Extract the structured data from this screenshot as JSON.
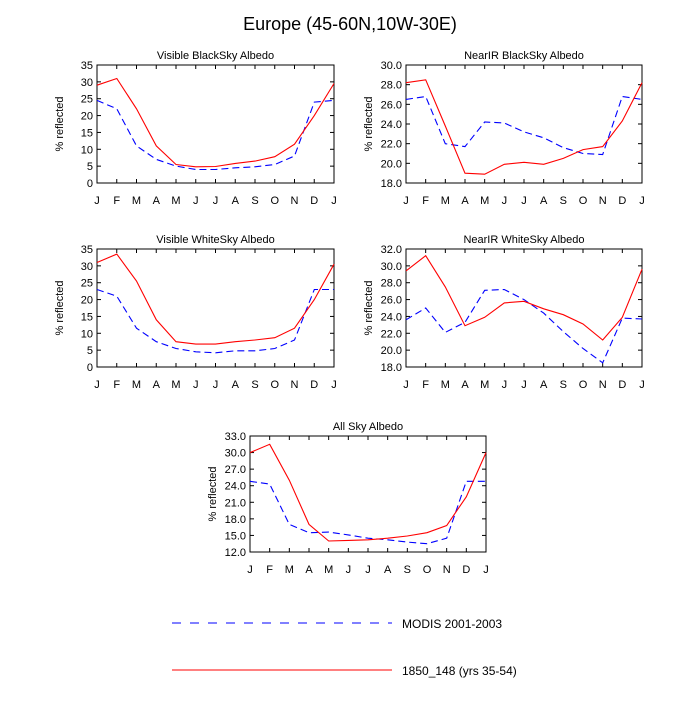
{
  "figure": {
    "title": "Europe (45-60N,10W-30E)",
    "ylabel": "% reflected",
    "months": [
      "J",
      "F",
      "M",
      "A",
      "M",
      "J",
      "J",
      "A",
      "S",
      "O",
      "N",
      "D",
      "J"
    ],
    "legend": [
      {
        "label": "MODIS 2001-2003",
        "color": "#0000ff",
        "dash": "dashed"
      },
      {
        "label": "1850_148 (yrs 35-54)",
        "color": "#ff0000",
        "dash": "solid"
      }
    ]
  },
  "chart_data": [
    {
      "type": "line",
      "title": "Visible BlackSky Albedo",
      "xlabel": "",
      "ylabel": "% reflected",
      "x": [
        "J",
        "F",
        "M",
        "A",
        "M",
        "J",
        "J",
        "A",
        "S",
        "O",
        "N",
        "D",
        "J"
      ],
      "ylim": [
        0,
        35
      ],
      "yticks": [
        "0",
        "5",
        "10",
        "15",
        "20",
        "25",
        "30",
        "35"
      ],
      "series": [
        {
          "name": "MODIS 2001-2003",
          "color": "#0000ff",
          "dash": "dashed",
          "values": [
            24.5,
            22,
            11,
            7,
            5,
            4,
            4,
            4.5,
            4.8,
            5.5,
            8,
            24,
            24.5
          ]
        },
        {
          "name": "1850_148 (yrs 35-54)",
          "color": "#ff0000",
          "dash": "solid",
          "values": [
            29,
            31,
            22,
            11,
            5.5,
            4.8,
            4.9,
            5.8,
            6.5,
            7.8,
            11.5,
            20,
            29.5
          ]
        }
      ]
    },
    {
      "type": "line",
      "title": "NearIR BlackSky Albedo",
      "xlabel": "",
      "ylabel": "% reflected",
      "x": [
        "J",
        "F",
        "M",
        "A",
        "M",
        "J",
        "J",
        "A",
        "S",
        "O",
        "N",
        "D",
        "J"
      ],
      "ylim": [
        18,
        30
      ],
      "yticks": [
        "18.0",
        "20.0",
        "22.0",
        "24.0",
        "26.0",
        "28.0",
        "30.0"
      ],
      "series": [
        {
          "name": "MODIS 2001-2003",
          "color": "#0000ff",
          "dash": "dashed",
          "values": [
            26.5,
            26.8,
            22.0,
            21.7,
            24.2,
            24.1,
            23.2,
            22.6,
            21.6,
            21.0,
            20.9,
            26.8,
            26.5
          ]
        },
        {
          "name": "1850_148 (yrs 35-54)",
          "color": "#ff0000",
          "dash": "solid",
          "values": [
            28.2,
            28.5,
            23.8,
            19.0,
            18.9,
            19.9,
            20.1,
            19.9,
            20.5,
            21.4,
            21.7,
            24.3,
            28.2
          ]
        }
      ]
    },
    {
      "type": "line",
      "title": "Visible WhiteSky Albedo",
      "xlabel": "",
      "ylabel": "% reflected",
      "x": [
        "J",
        "F",
        "M",
        "A",
        "M",
        "J",
        "J",
        "A",
        "S",
        "O",
        "N",
        "D",
        "J"
      ],
      "ylim": [
        0,
        35
      ],
      "yticks": [
        "0",
        "5",
        "10",
        "15",
        "20",
        "25",
        "30",
        "35"
      ],
      "series": [
        {
          "name": "MODIS 2001-2003",
          "color": "#0000ff",
          "dash": "dashed",
          "values": [
            23,
            21,
            11.5,
            7.5,
            5.5,
            4.5,
            4.2,
            4.8,
            4.8,
            5.5,
            8,
            23,
            23
          ]
        },
        {
          "name": "1850_148 (yrs 35-54)",
          "color": "#ff0000",
          "dash": "solid",
          "values": [
            31,
            33.5,
            25.5,
            14,
            7.5,
            6.8,
            6.8,
            7.5,
            8,
            8.7,
            11.5,
            20,
            30.5
          ]
        }
      ]
    },
    {
      "type": "line",
      "title": "NearIR WhiteSky Albedo",
      "xlabel": "",
      "ylabel": "% reflected",
      "x": [
        "J",
        "F",
        "M",
        "A",
        "M",
        "J",
        "J",
        "A",
        "S",
        "O",
        "N",
        "D",
        "J"
      ],
      "ylim": [
        18,
        32
      ],
      "yticks": [
        "18.0",
        "20.0",
        "22.0",
        "24.0",
        "26.0",
        "28.0",
        "30.0",
        "32.0"
      ],
      "series": [
        {
          "name": "MODIS 2001-2003",
          "color": "#0000ff",
          "dash": "dashed",
          "values": [
            23.6,
            25.0,
            22.1,
            23.3,
            27.1,
            27.2,
            26.0,
            24.4,
            22.2,
            20.2,
            18.5,
            23.8,
            23.7
          ]
        },
        {
          "name": "1850_148 (yrs 35-54)",
          "color": "#ff0000",
          "dash": "solid",
          "values": [
            29.4,
            31.2,
            27.5,
            22.9,
            23.9,
            25.6,
            25.8,
            24.9,
            24.2,
            23.1,
            21.2,
            23.9,
            29.6
          ]
        }
      ]
    },
    {
      "type": "line",
      "title": "All Sky Albedo",
      "xlabel": "",
      "ylabel": "% reflected",
      "x": [
        "J",
        "F",
        "M",
        "A",
        "M",
        "J",
        "J",
        "A",
        "S",
        "O",
        "N",
        "D",
        "J"
      ],
      "ylim": [
        12,
        33
      ],
      "yticks": [
        "12.0",
        "15.0",
        "18.0",
        "21.0",
        "24.0",
        "27.0",
        "30.0",
        "33.0"
      ],
      "series": [
        {
          "name": "MODIS 2001-2003",
          "color": "#0000ff",
          "dash": "dashed",
          "values": [
            24.8,
            24.3,
            17.0,
            15.5,
            15.6,
            15.1,
            14.5,
            14.2,
            13.8,
            13.5,
            14.5,
            24.8,
            24.8
          ]
        },
        {
          "name": "1850_148 (yrs 35-54)",
          "color": "#ff0000",
          "dash": "solid",
          "values": [
            30.0,
            31.5,
            25.0,
            17.0,
            14.0,
            14.1,
            14.2,
            14.5,
            14.9,
            15.5,
            16.8,
            22.0,
            30.0
          ]
        }
      ]
    }
  ]
}
